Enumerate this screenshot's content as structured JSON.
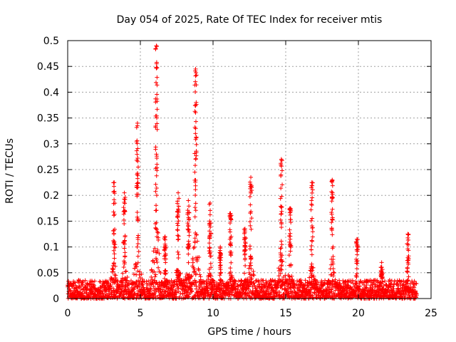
{
  "chart_data": {
    "type": "scatter",
    "title": "Day 054 of 2025, Rate Of TEC Index for receiver mtis",
    "xlabel": "GPS time / hours",
    "ylabel": "ROTI / TECUs",
    "xlim": [
      0,
      25
    ],
    "ylim": [
      0,
      0.5
    ],
    "xticks": [
      0,
      5,
      10,
      15,
      20,
      25
    ],
    "yticks": [
      0,
      0.05,
      0.1,
      0.15,
      0.2,
      0.25,
      0.3,
      0.35,
      0.4,
      0.45,
      0.5
    ],
    "xtick_labels": [
      "0",
      "5",
      "10",
      "15",
      "20",
      "25"
    ],
    "ytick_labels": [
      "0",
      "0.05",
      "0.1",
      "0.15",
      "0.2",
      "0.25",
      "0.3",
      "0.35",
      "0.4",
      "0.45",
      "0.5"
    ],
    "grid": true,
    "marker": "+",
    "color": "#ff0000",
    "data_range_hours": [
      0,
      24
    ],
    "baseline_band": [
      0.0,
      0.03
    ],
    "bursts": [
      {
        "t": 3.2,
        "max": 0.225
      },
      {
        "t": 3.9,
        "max": 0.205
      },
      {
        "t": 4.8,
        "max": 0.34
      },
      {
        "t": 6.1,
        "max": 0.49
      },
      {
        "t": 6.7,
        "max": 0.12
      },
      {
        "t": 7.6,
        "max": 0.205
      },
      {
        "t": 8.3,
        "max": 0.19
      },
      {
        "t": 8.8,
        "max": 0.445
      },
      {
        "t": 9.8,
        "max": 0.185
      },
      {
        "t": 10.5,
        "max": 0.1
      },
      {
        "t": 11.2,
        "max": 0.165
      },
      {
        "t": 12.2,
        "max": 0.135
      },
      {
        "t": 12.6,
        "max": 0.235
      },
      {
        "t": 14.7,
        "max": 0.27
      },
      {
        "t": 15.3,
        "max": 0.175
      },
      {
        "t": 16.8,
        "max": 0.225
      },
      {
        "t": 18.2,
        "max": 0.23
      },
      {
        "t": 19.9,
        "max": 0.115
      },
      {
        "t": 21.6,
        "max": 0.07
      },
      {
        "t": 23.4,
        "max": 0.125
      }
    ]
  }
}
